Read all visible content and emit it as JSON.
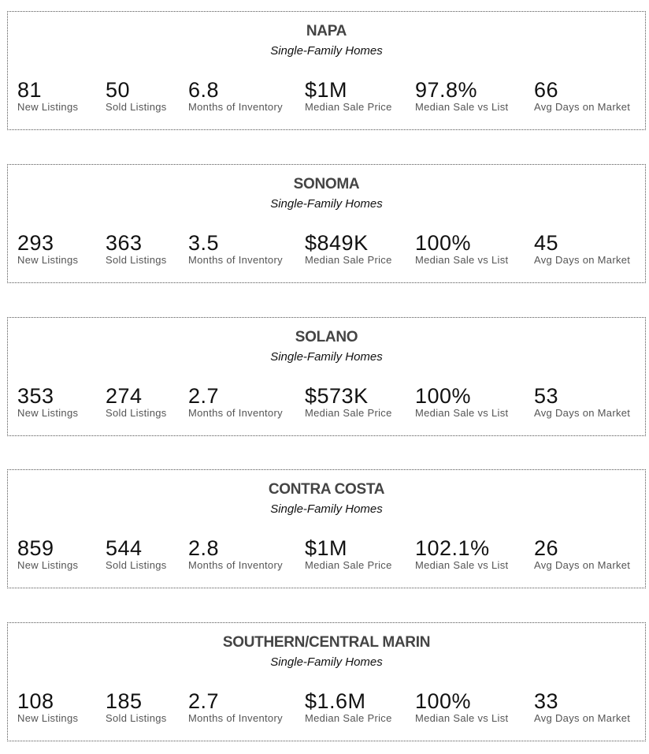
{
  "regions": [
    {
      "name": "NAPA",
      "subtitle": "Single-Family Homes",
      "stats": [
        {
          "value": "81",
          "label": "New Listings"
        },
        {
          "value": "50",
          "label": "Sold Listings"
        },
        {
          "value": "6.8",
          "label": "Months of Inventory"
        },
        {
          "value": "$1M",
          "label": "Median Sale Price"
        },
        {
          "value": "97.8%",
          "label": "Median Sale vs List"
        },
        {
          "value": "66",
          "label": "Avg Days on Market"
        }
      ]
    },
    {
      "name": "SONOMA",
      "subtitle": "Single-Family Homes",
      "stats": [
        {
          "value": "293",
          "label": "New Listings"
        },
        {
          "value": "363",
          "label": "Sold Listings"
        },
        {
          "value": "3.5",
          "label": "Months of Inventory"
        },
        {
          "value": "$849K",
          "label": "Median Sale Price"
        },
        {
          "value": "100%",
          "label": "Median Sale vs List"
        },
        {
          "value": "45",
          "label": "Avg Days on Market"
        }
      ]
    },
    {
      "name": "SOLANO",
      "subtitle": "Single-Family Homes",
      "stats": [
        {
          "value": "353",
          "label": "New Listings"
        },
        {
          "value": "274",
          "label": "Sold Listings"
        },
        {
          "value": "2.7",
          "label": "Months of Inventory"
        },
        {
          "value": "$573K",
          "label": "Median Sale Price"
        },
        {
          "value": "100%",
          "label": "Median Sale vs List"
        },
        {
          "value": "53",
          "label": "Avg Days on Market"
        }
      ]
    },
    {
      "name": "CONTRA COSTA",
      "subtitle": "Single-Family Homes",
      "stats": [
        {
          "value": "859",
          "label": "New Listings"
        },
        {
          "value": "544",
          "label": "Sold Listings"
        },
        {
          "value": "2.8",
          "label": "Months of Inventory"
        },
        {
          "value": "$1M",
          "label": "Median Sale Price"
        },
        {
          "value": "102.1%",
          "label": "Median Sale vs List"
        },
        {
          "value": "26",
          "label": "Avg Days on Market"
        }
      ]
    },
    {
      "name": "SOUTHERN/CENTRAL MARIN",
      "subtitle": "Single-Family Homes",
      "stats": [
        {
          "value": "108",
          "label": "New Listings"
        },
        {
          "value": "185",
          "label": "Sold Listings"
        },
        {
          "value": "2.7",
          "label": "Months of Inventory"
        },
        {
          "value": "$1.6M",
          "label": "Median Sale Price"
        },
        {
          "value": "100%",
          "label": "Median Sale vs List"
        },
        {
          "value": "33",
          "label": "Avg Days on Market"
        }
      ]
    }
  ]
}
